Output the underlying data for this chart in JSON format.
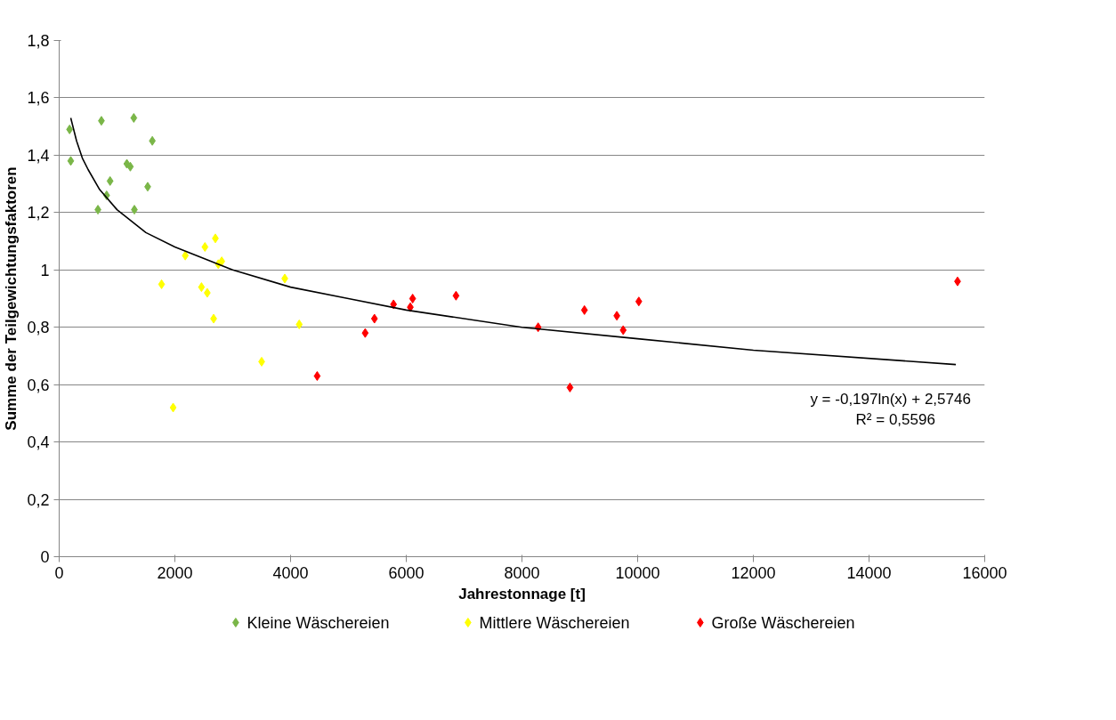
{
  "chart_data": {
    "type": "scatter",
    "xlabel": "Jahrestonnage [t]",
    "ylabel": "Summe der Teilgewichtungsfaktoren",
    "xlim": [
      0,
      16000
    ],
    "xticks": [
      0,
      2000,
      4000,
      6000,
      8000,
      10000,
      12000,
      14000,
      16000
    ],
    "ylim": [
      0,
      1.8
    ],
    "yticks": [
      0,
      {
        "value": 0.2,
        "label": "0,2"
      },
      {
        "value": 0.4,
        "label": "0,4"
      },
      {
        "value": 0.6,
        "label": "0,6"
      },
      {
        "value": 0.8,
        "label": "0,8"
      },
      1,
      {
        "value": 1.2,
        "label": "1,2"
      },
      {
        "value": 1.4,
        "label": "1,4"
      },
      {
        "value": 1.6,
        "label": "1,6"
      },
      {
        "value": 1.8,
        "label": "1,8"
      }
    ],
    "grid": "y",
    "legend": "bottom",
    "marker": "diamond",
    "annotations": [
      "y = -0,197ln(x) + 2,5746",
      "R² = 0,5596"
    ],
    "series": [
      {
        "name": "Kleine Wäschereien",
        "color": "#7ab648",
        "x": [
          180,
          200,
          730,
          1290,
          1610,
          1170,
          1230,
          880,
          820,
          1530,
          670,
          1300
        ],
        "values": [
          1.49,
          1.38,
          1.52,
          1.53,
          1.45,
          1.37,
          1.36,
          1.31,
          1.26,
          1.29,
          1.21,
          1.21
        ]
      },
      {
        "name": "Mittlere Wäschereien",
        "color": "#ffff00",
        "x": [
          2700,
          2520,
          2180,
          2750,
          2810,
          1770,
          3900,
          2460,
          2560,
          2670,
          4150,
          3500,
          1970
        ],
        "values": [
          1.11,
          1.08,
          1.05,
          1.02,
          1.03,
          0.95,
          0.97,
          0.94,
          0.92,
          0.83,
          0.81,
          0.68,
          0.52
        ]
      },
      {
        "name": "Große Wäschereien",
        "color": "#ff0000",
        "x": [
          4460,
          5290,
          5450,
          5780,
          6110,
          6070,
          6860,
          8280,
          8830,
          9080,
          9640,
          9750,
          10020,
          15530
        ],
        "values": [
          0.63,
          0.78,
          0.83,
          0.88,
          0.9,
          0.87,
          0.91,
          0.8,
          0.59,
          0.86,
          0.84,
          0.79,
          0.89,
          0.96
        ]
      },
      {
        "type": "line",
        "marker": "none",
        "color": "#000000",
        "x": [
          200,
          300,
          400,
          500,
          700,
          1000,
          1500,
          2000,
          3000,
          4000,
          5000,
          6000,
          8000,
          10000,
          12000,
          15500
        ],
        "values": [
          1.53,
          1.45,
          1.39,
          1.35,
          1.28,
          1.21,
          1.13,
          1.08,
          1.0,
          0.94,
          0.9,
          0.86,
          0.8,
          0.76,
          0.72,
          0.67
        ]
      }
    ]
  }
}
